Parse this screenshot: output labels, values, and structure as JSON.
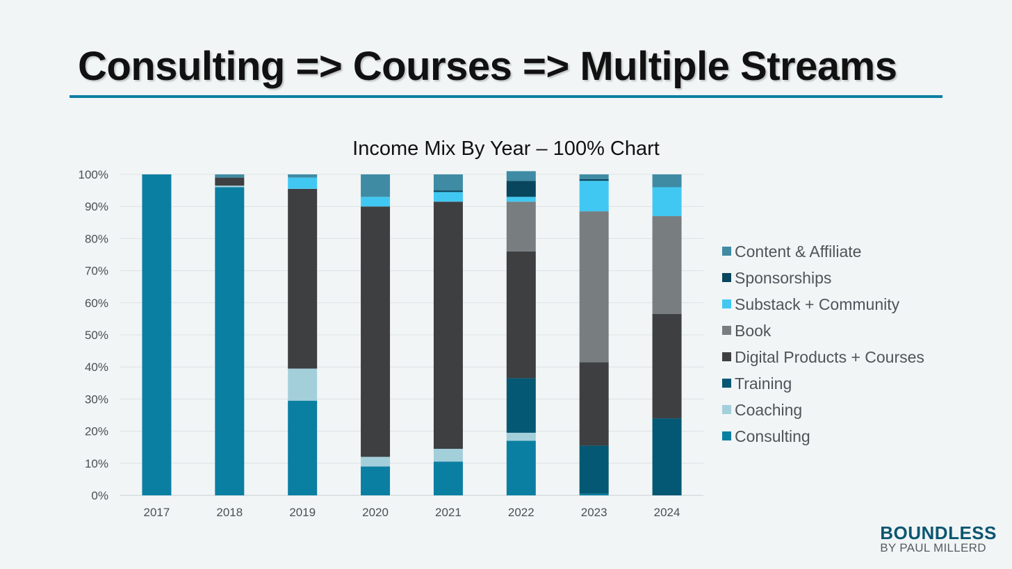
{
  "slide": {
    "title": "Consulting => Courses => Multiple Streams"
  },
  "brand": {
    "name": "BOUNDLESS",
    "sub": "BY PAUL MILLERD"
  },
  "chart_data": {
    "type": "bar",
    "stacked": true,
    "percent": true,
    "title": "Income Mix By Year – 100% Chart",
    "xlabel": "",
    "ylabel": "",
    "ylim": [
      0,
      100
    ],
    "yticks": [
      "0%",
      "10%",
      "20%",
      "30%",
      "40%",
      "50%",
      "60%",
      "70%",
      "80%",
      "90%",
      "100%"
    ],
    "grid": true,
    "legend_position": "right",
    "categories": [
      "2017",
      "2018",
      "2019",
      "2020",
      "2021",
      "2022",
      "2023",
      "2024"
    ],
    "series": [
      {
        "name": "Consulting",
        "color": "#0b7fa2",
        "values": [
          100,
          96,
          29.5,
          9,
          10.5,
          17,
          0.5,
          0
        ]
      },
      {
        "name": "Coaching",
        "color": "#a3cfdb",
        "values": [
          0,
          0.5,
          10,
          3,
          4,
          2.5,
          0,
          0
        ]
      },
      {
        "name": "Training",
        "color": "#045873",
        "values": [
          0,
          0,
          0,
          0,
          0,
          17,
          15,
          24
        ]
      },
      {
        "name": "Digital Products + Courses",
        "color": "#3e3f41",
        "values": [
          0,
          2.5,
          56,
          78,
          77,
          39.5,
          26,
          32.5
        ]
      },
      {
        "name": "Book",
        "color": "#787d7f",
        "values": [
          0,
          0,
          0,
          0,
          0,
          15.5,
          47,
          30.5
        ]
      },
      {
        "name": "Substack + Community",
        "color": "#41c8f2",
        "values": [
          0,
          0,
          3.5,
          3,
          3,
          1.5,
          9.5,
          9
        ]
      },
      {
        "name": "Sponsorships",
        "color": "#08465d",
        "values": [
          0,
          0,
          0,
          0,
          0.5,
          5,
          0.5,
          0
        ]
      },
      {
        "name": "Content & Affiliate",
        "color": "#3f8ba4",
        "values": [
          0,
          1,
          1,
          7,
          5,
          3,
          1.5,
          4
        ]
      }
    ]
  }
}
